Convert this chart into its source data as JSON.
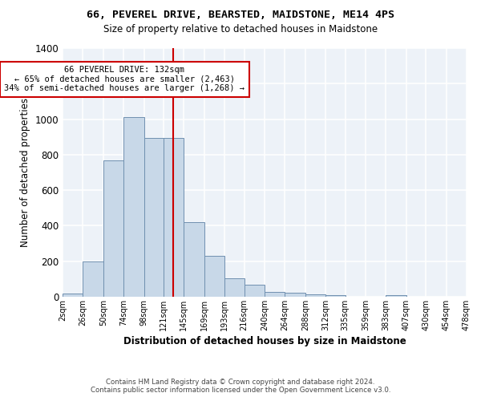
{
  "title_line1": "66, PEVEREL DRIVE, BEARSTED, MAIDSTONE, ME14 4PS",
  "title_line2": "Size of property relative to detached houses in Maidstone",
  "xlabel": "Distribution of detached houses by size in Maidstone",
  "ylabel": "Number of detached properties",
  "annotation_line1": "66 PEVEREL DRIVE: 132sqm",
  "annotation_line2": "← 65% of detached houses are smaller (2,463)",
  "annotation_line3": "34% of semi-detached houses are larger (1,268) →",
  "bin_edges": [
    2,
    26,
    50,
    74,
    98,
    121,
    145,
    169,
    193,
    216,
    240,
    264,
    288,
    312,
    335,
    359,
    383,
    407,
    430,
    454,
    478
  ],
  "bar_heights": [
    20,
    200,
    770,
    1010,
    895,
    895,
    420,
    230,
    105,
    68,
    25,
    22,
    15,
    10,
    0,
    0,
    10,
    0,
    0,
    0
  ],
  "bar_color": "#c8d8e8",
  "bar_edge_color": "#7090b0",
  "vline_x": 132,
  "vline_color": "#cc0000",
  "annotation_edge_color": "#cc0000",
  "background_color": "#edf2f8",
  "grid_color": "#ffffff",
  "ylim": [
    0,
    1400
  ],
  "yticks": [
    0,
    200,
    400,
    600,
    800,
    1000,
    1200,
    1400
  ],
  "footer_line1": "Contains HM Land Registry data © Crown copyright and database right 2024.",
  "footer_line2": "Contains public sector information licensed under the Open Government Licence v3.0."
}
